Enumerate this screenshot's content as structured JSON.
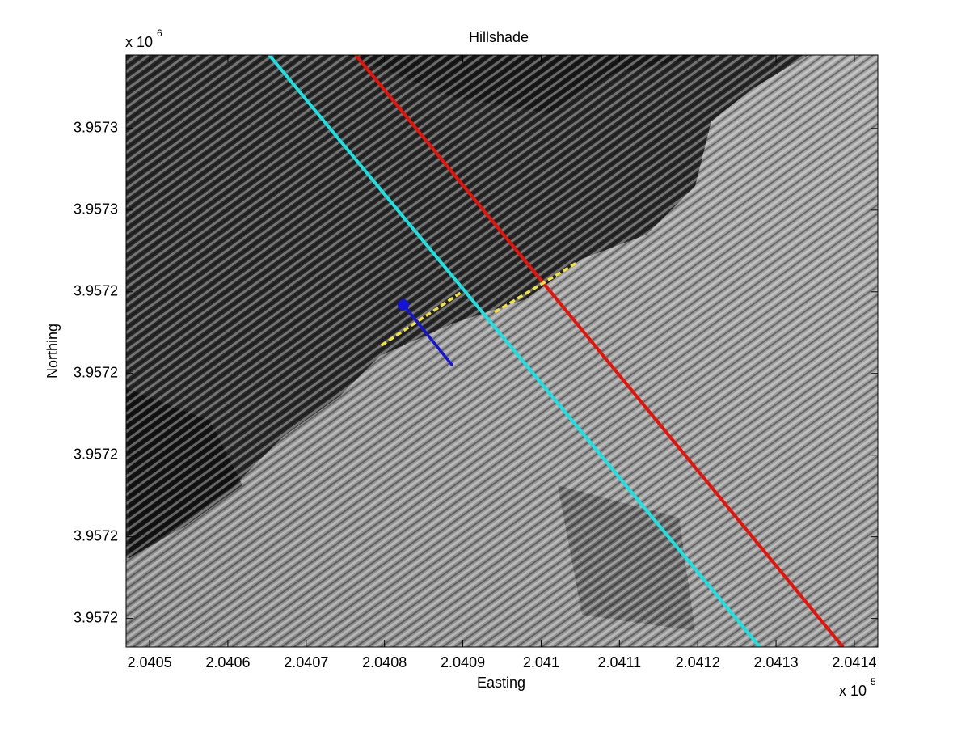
{
  "chart_data": {
    "type": "line",
    "title": "Hillshade",
    "x_label": "Easting",
    "y_label": "Northing",
    "x_scale_label": "x 10",
    "x_scale_exponent": "5",
    "y_scale_label": "x 10",
    "y_scale_exponent": "6",
    "xlim": [
      2.04047,
      2.04143
    ],
    "ylim": [
      3.957153,
      3.957298
    ],
    "xticks": [
      2.0405,
      2.0406,
      2.0407,
      2.0408,
      2.0409,
      2.041,
      2.0411,
      2.0412,
      2.0413,
      2.0414
    ],
    "yticks": [
      {
        "value": 3.95716,
        "label": "3.9572"
      },
      {
        "value": 3.95718,
        "label": "3.9572"
      },
      {
        "value": 3.9572,
        "label": "3.9572"
      },
      {
        "value": 3.95722,
        "label": "3.9572"
      },
      {
        "value": 3.95724,
        "label": "3.9572"
      },
      {
        "value": 3.95726,
        "label": "3.9573"
      },
      {
        "value": 3.95728,
        "label": "3.9573"
      }
    ],
    "series": [
      {
        "color": "#1fe0e0",
        "width": 4,
        "x": [
          2.0406527,
          2.0412793
        ],
        "values": [
          3.957298,
          3.957153
        ]
      },
      {
        "color": "#e3140c",
        "width": 4,
        "x": [
          2.0407632,
          2.0413856
        ],
        "values": [
          3.957298,
          3.957153
        ]
      },
      {
        "color": "#f2e24a",
        "width": 3.5,
        "dashed": true,
        "x": [
          2.0407962,
          2.0408974,
          null,
          2.0409407,
          2.0410471
        ],
        "values": [
          3.9572269,
          3.9572398,
          null,
          3.957235,
          3.9572473
        ]
      },
      {
        "color": "#1414d2",
        "width": 3.5,
        "marker": "first",
        "x": [
          2.0408241,
          2.040887
        ],
        "values": [
          3.9572368,
          3.9572219
        ]
      }
    ]
  }
}
